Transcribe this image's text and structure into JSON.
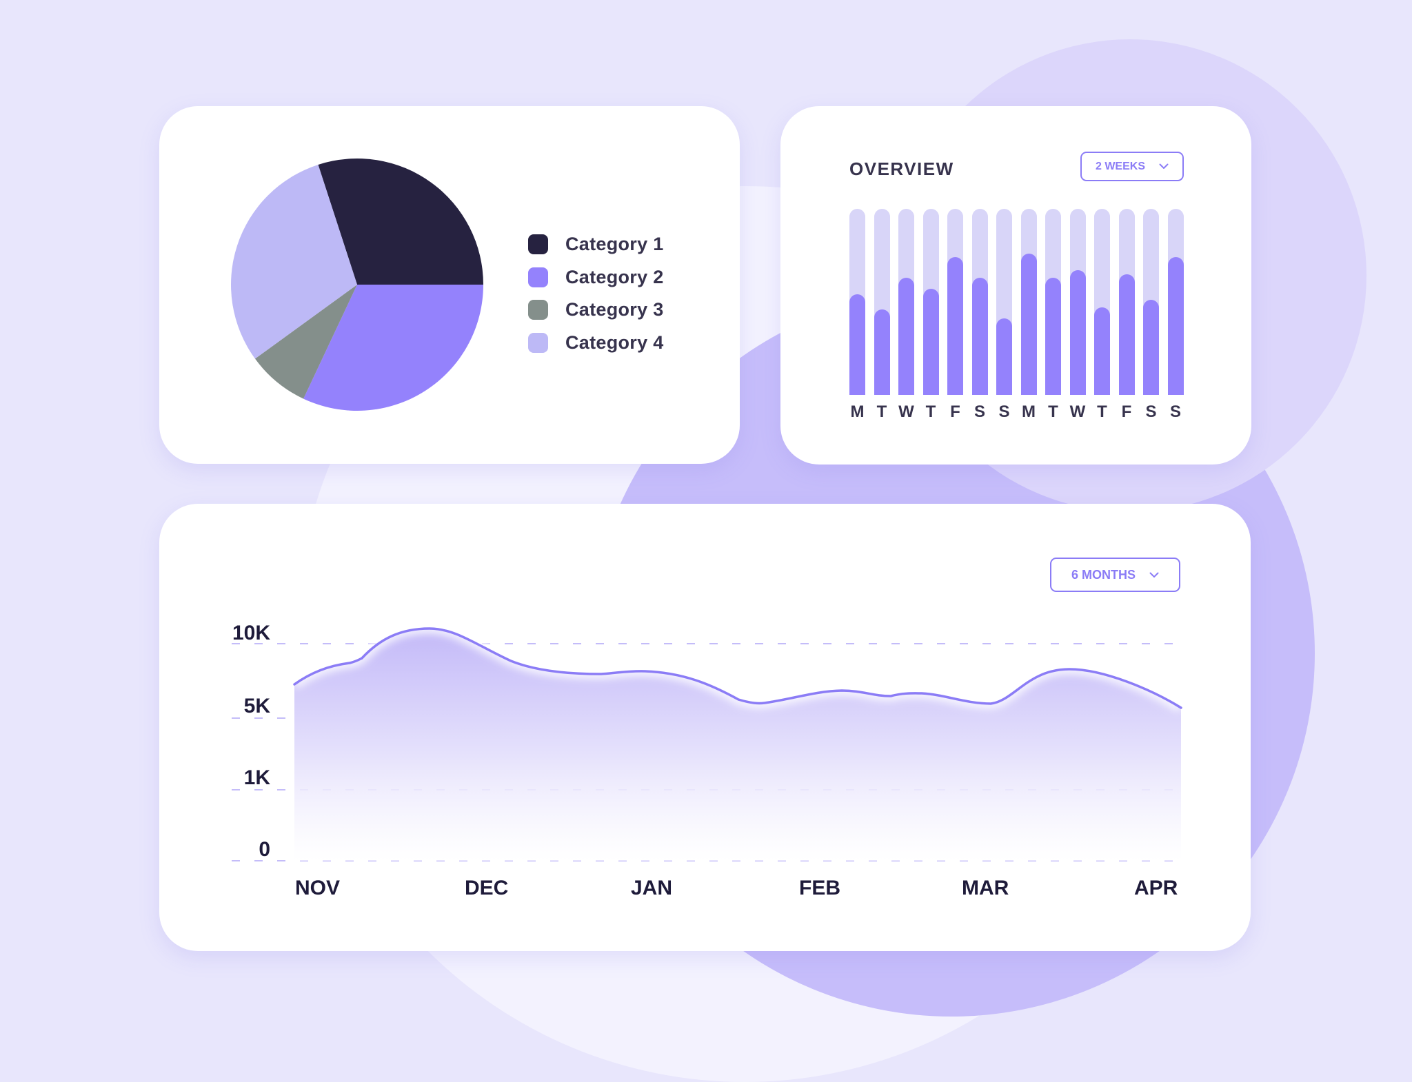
{
  "colors": {
    "background": "#e8e6fc",
    "accent": "#8b7cf6",
    "bar_track": "#d8d5f8",
    "bar_fill": "#9482fc",
    "text_dark": "#37334d",
    "axis_text": "#1e1b3a"
  },
  "pie_card": {
    "legend": [
      {
        "label": "Category 1",
        "color": "#262240"
      },
      {
        "label": "Category 2",
        "color": "#9482fc"
      },
      {
        "label": "Category 3",
        "color": "#848f8b"
      },
      {
        "label": "Category 4",
        "color": "#bdb9f6"
      }
    ]
  },
  "overview_card": {
    "title": "OVERVIEW",
    "dropdown": {
      "label": "2 WEEKS",
      "icon": "chevron-down-icon"
    }
  },
  "line_card": {
    "dropdown": {
      "label": "6 MONTHS",
      "icon": "chevron-down-icon"
    }
  },
  "chart_data": [
    {
      "type": "pie",
      "title": "",
      "categories": [
        "Category 1",
        "Category 2",
        "Category 3",
        "Category 4"
      ],
      "values": [
        30,
        32,
        8,
        30
      ],
      "colors": [
        "#262240",
        "#9482fc",
        "#848f8b",
        "#bdb9f6"
      ],
      "start_angle_deg": -108,
      "legend_position": "right"
    },
    {
      "type": "bar",
      "title": "OVERVIEW",
      "range_selector": "2 WEEKS",
      "categories": [
        "M",
        "T",
        "W",
        "T",
        "F",
        "S",
        "S",
        "M",
        "T",
        "W",
        "T",
        "F",
        "S",
        "S"
      ],
      "values": [
        54,
        46,
        63,
        57,
        74,
        63,
        41,
        76,
        63,
        67,
        47,
        65,
        51,
        74
      ],
      "max": 100,
      "xlabel": "",
      "ylabel": "",
      "grid": false
    },
    {
      "type": "area",
      "title": "",
      "range_selector": "6 MONTHS",
      "categories": [
        "NOV",
        "DEC",
        "JAN",
        "FEB",
        "MAR",
        "APR"
      ],
      "y_ticks": [
        "0",
        "1K",
        "5K",
        "10K"
      ],
      "x": [
        "NOV",
        "mid-NOV",
        "late-NOV",
        "DEC",
        "mid-DEC",
        "late-DEC",
        "JAN",
        "mid-JAN",
        "late-JAN",
        "FEB",
        "mid-FEB",
        "MAR",
        "mid-MAR",
        "APR"
      ],
      "values_approx": [
        6800,
        8100,
        10600,
        9300,
        8000,
        7600,
        7700,
        5900,
        6500,
        6100,
        6300,
        5700,
        8000,
        5500
      ],
      "grid": true,
      "grid_style": "dashed",
      "ylim": [
        0,
        10000
      ]
    }
  ]
}
